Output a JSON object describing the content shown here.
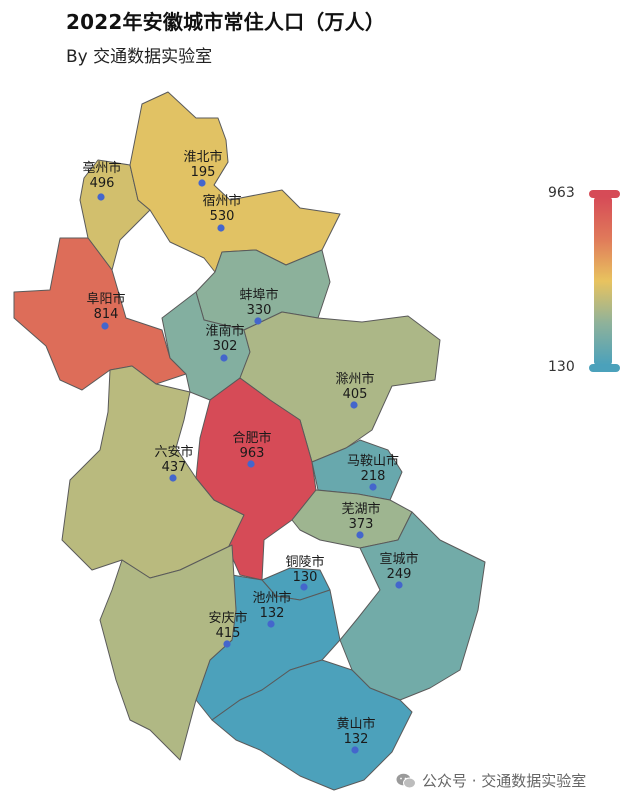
{
  "title": "2022年安徽城市常住人口（万人）",
  "subtitle": "By 交通数据实验室",
  "watermark": "公众号 · 交通数据实验室",
  "legend": {
    "max_label": "963",
    "min_label": "130",
    "min": 130,
    "max": 963
  },
  "colors": {
    "scale": [
      "#4ba1bb",
      "#8fb29a",
      "#e8c35f",
      "#e07a5a",
      "#d64b57"
    ]
  },
  "cities": [
    {
      "name": "亳州市",
      "value": "496"
    },
    {
      "name": "淮北市",
      "value": "195"
    },
    {
      "name": "宿州市",
      "value": "530"
    },
    {
      "name": "蚌埠市",
      "value": "330"
    },
    {
      "name": "阜阳市",
      "value": "814"
    },
    {
      "name": "淮南市",
      "value": "302"
    },
    {
      "name": "滁州市",
      "value": "405"
    },
    {
      "name": "六安市",
      "value": "437"
    },
    {
      "name": "合肥市",
      "value": "963"
    },
    {
      "name": "马鞍山市",
      "value": "218"
    },
    {
      "name": "芜湖市",
      "value": "373"
    },
    {
      "name": "宣城市",
      "value": "249"
    },
    {
      "name": "铜陵市",
      "value": "130"
    },
    {
      "name": "池州市",
      "value": "132"
    },
    {
      "name": "安庆市",
      "value": "415"
    },
    {
      "name": "黄山市",
      "value": "132"
    }
  ]
}
